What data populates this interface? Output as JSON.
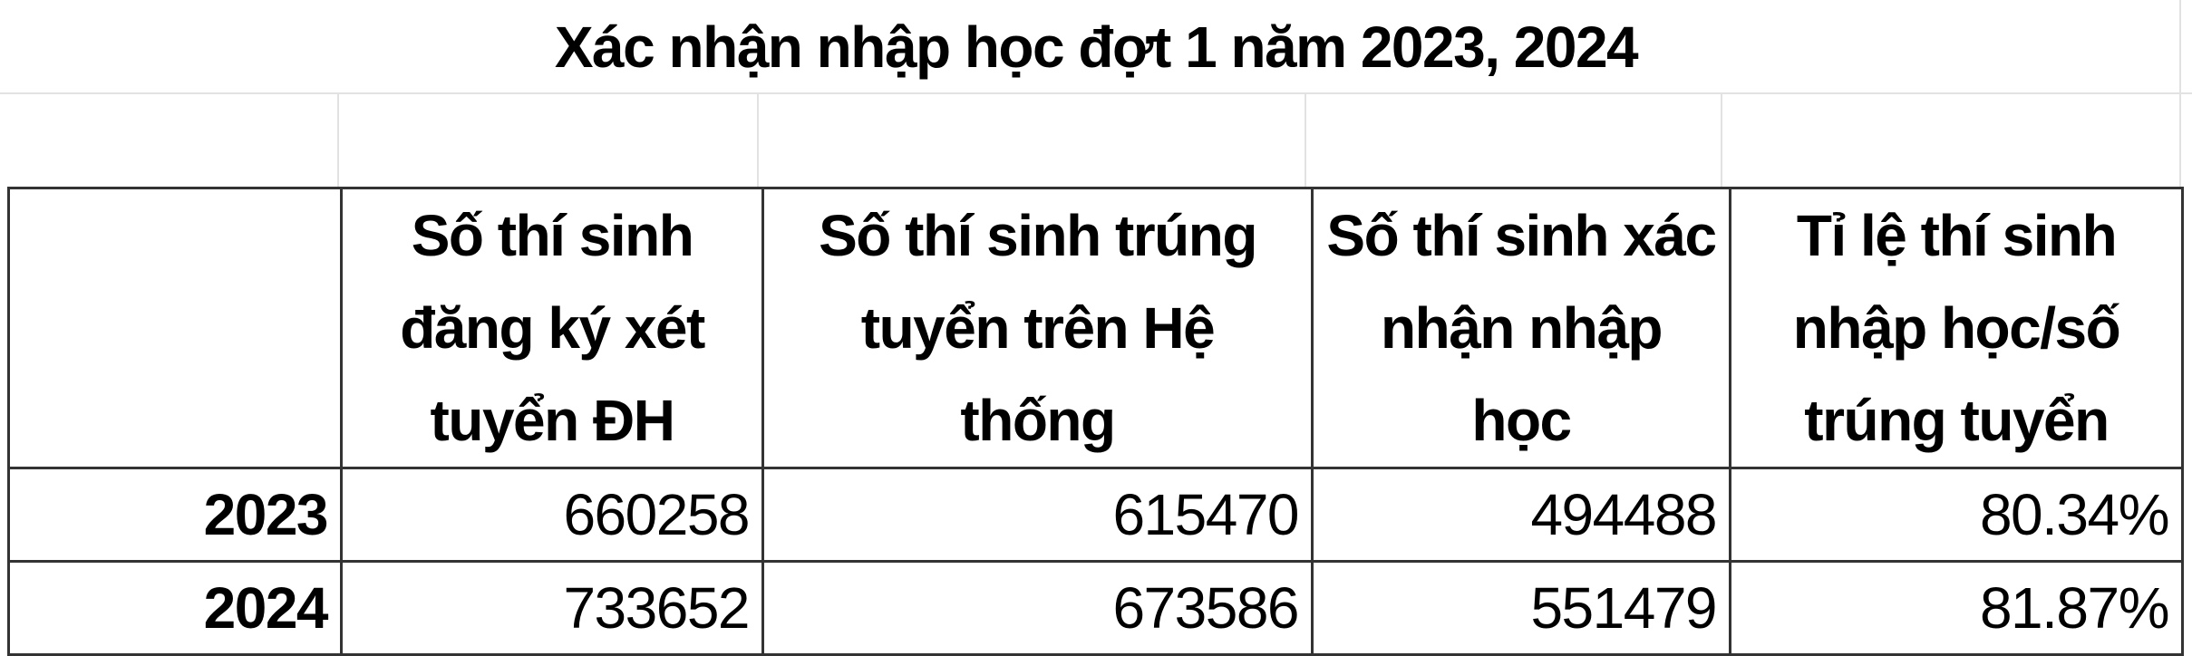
{
  "title": "Xác nhận nhập học đợt 1 năm 2023, 2024",
  "table": {
    "headers": [
      "",
      "Số thí sinh đăng ký xét tuyển ĐH",
      "Số thí sinh trúng tuyển trên Hệ thống",
      "Số thí sinh xác nhận nhập học",
      "Tỉ lệ thí sinh nhập học/số trúng tuyển"
    ],
    "rows": [
      [
        "2023",
        "660258",
        "615470",
        "494488",
        "80.34%"
      ],
      [
        "2024",
        "733652",
        "673586",
        "551479",
        "81.87%"
      ]
    ]
  }
}
